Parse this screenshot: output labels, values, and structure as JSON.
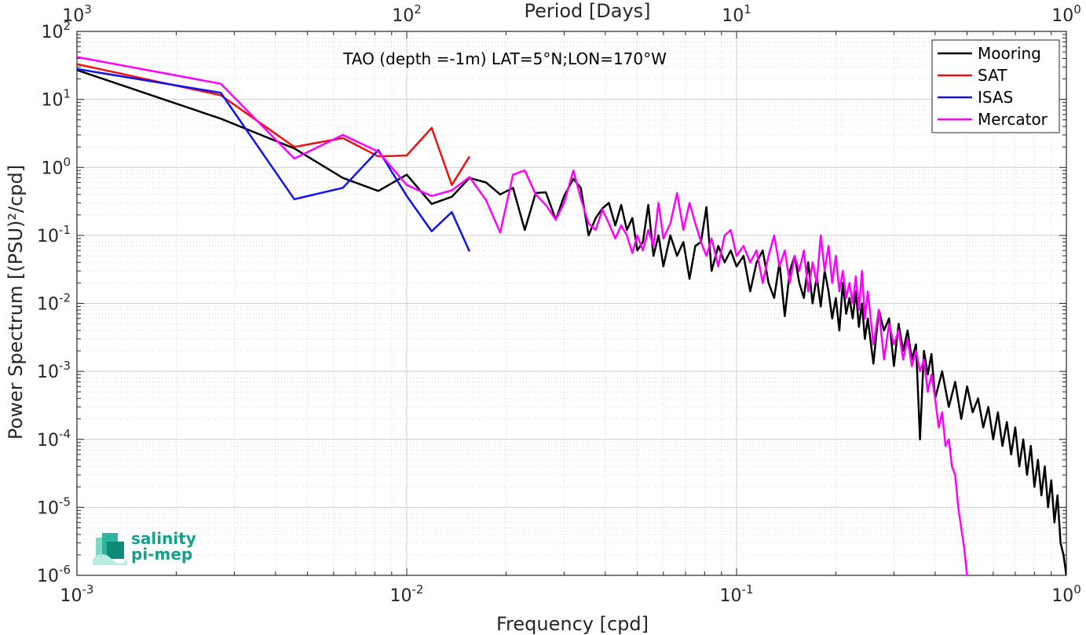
{
  "chart_data": {
    "type": "line",
    "title": "TAO (depth =-1m) LAT=5°N;LON=170°W",
    "xlabel": "Frequency [cpd]",
    "ylabel": "Power Spectrum [(PSU)²/cpd]",
    "top_xlabel": "Period [Days]",
    "x_scale": "log",
    "y_scale": "log",
    "xlim": [
      0.001,
      1
    ],
    "ylim": [
      1e-06,
      100
    ],
    "grid": true,
    "legend_position": "top-right",
    "x_ticks": [
      {
        "base": "10",
        "exp": "-3",
        "value": 0.001
      },
      {
        "base": "10",
        "exp": "-2",
        "value": 0.01
      },
      {
        "base": "10",
        "exp": "-1",
        "value": 0.1
      },
      {
        "base": "10",
        "exp": "0",
        "value": 1
      }
    ],
    "top_ticks": [
      {
        "base": "10",
        "exp": "3",
        "period": 1000
      },
      {
        "base": "10",
        "exp": "2",
        "period": 100
      },
      {
        "base": "10",
        "exp": "1",
        "period": 10
      },
      {
        "base": "10",
        "exp": "0",
        "period": 1
      }
    ],
    "y_ticks": [
      {
        "base": "10",
        "exp": "2",
        "value": 100
      },
      {
        "base": "10",
        "exp": "1",
        "value": 10
      },
      {
        "base": "10",
        "exp": "0",
        "value": 1
      },
      {
        "base": "10",
        "exp": "-1",
        "value": 0.1
      },
      {
        "base": "10",
        "exp": "-2",
        "value": 0.01
      },
      {
        "base": "10",
        "exp": "-3",
        "value": 0.001
      },
      {
        "base": "10",
        "exp": "-4",
        "value": 0.0001
      },
      {
        "base": "10",
        "exp": "-5",
        "value": 1e-05
      },
      {
        "base": "10",
        "exp": "-6",
        "value": 1e-06
      }
    ],
    "series": [
      {
        "name": "Mooring",
        "color": "#000000",
        "points": [
          [
            0.001,
            27
          ],
          [
            0.00273,
            5.2
          ],
          [
            0.00456,
            1.9
          ],
          [
            0.0064,
            0.7
          ],
          [
            0.0082,
            0.45
          ],
          [
            0.01,
            0.78
          ],
          [
            0.0119,
            0.29
          ],
          [
            0.0137,
            0.37
          ],
          [
            0.0155,
            0.7
          ],
          [
            0.0174,
            0.6
          ],
          [
            0.0192,
            0.4
          ],
          [
            0.021,
            0.5
          ],
          [
            0.0228,
            0.12
          ],
          [
            0.0246,
            0.42
          ],
          [
            0.0264,
            0.43
          ],
          [
            0.0283,
            0.17
          ],
          [
            0.03,
            0.38
          ],
          [
            0.032,
            0.68
          ],
          [
            0.0337,
            0.5
          ],
          [
            0.0356,
            0.1
          ],
          [
            0.0374,
            0.18
          ],
          [
            0.0392,
            0.25
          ],
          [
            0.041,
            0.3
          ],
          [
            0.0429,
            0.14
          ],
          [
            0.0447,
            0.28
          ],
          [
            0.0465,
            0.12
          ],
          [
            0.0483,
            0.18
          ],
          [
            0.05,
            0.06
          ],
          [
            0.052,
            0.08
          ],
          [
            0.054,
            0.28
          ],
          [
            0.056,
            0.05
          ],
          [
            0.058,
            0.1
          ],
          [
            0.06,
            0.035
          ],
          [
            0.063,
            0.1
          ],
          [
            0.066,
            0.05
          ],
          [
            0.069,
            0.08
          ],
          [
            0.072,
            0.023
          ],
          [
            0.075,
            0.07
          ],
          [
            0.078,
            0.08
          ],
          [
            0.081,
            0.26
          ],
          [
            0.084,
            0.03
          ],
          [
            0.088,
            0.07
          ],
          [
            0.092,
            0.04
          ],
          [
            0.096,
            0.06
          ],
          [
            0.1,
            0.035
          ],
          [
            0.105,
            0.05
          ],
          [
            0.11,
            0.015
          ],
          [
            0.115,
            0.04
          ],
          [
            0.12,
            0.06
          ],
          [
            0.125,
            0.02
          ],
          [
            0.13,
            0.012
          ],
          [
            0.135,
            0.04
          ],
          [
            0.14,
            0.0065
          ],
          [
            0.145,
            0.03
          ],
          [
            0.15,
            0.05
          ],
          [
            0.155,
            0.02
          ],
          [
            0.16,
            0.012
          ],
          [
            0.165,
            0.04
          ],
          [
            0.17,
            0.01
          ],
          [
            0.175,
            0.025
          ],
          [
            0.18,
            0.009
          ],
          [
            0.185,
            0.03
          ],
          [
            0.19,
            0.015
          ],
          [
            0.195,
            0.006
          ],
          [
            0.2,
            0.012
          ],
          [
            0.205,
            0.004
          ],
          [
            0.21,
            0.02
          ],
          [
            0.215,
            0.007
          ],
          [
            0.22,
            0.012
          ],
          [
            0.225,
            0.006
          ],
          [
            0.23,
            0.015
          ],
          [
            0.235,
            0.0045
          ],
          [
            0.24,
            0.01
          ],
          [
            0.245,
            0.003
          ],
          [
            0.25,
            0.006
          ],
          [
            0.26,
            0.0013
          ],
          [
            0.27,
            0.008
          ],
          [
            0.28,
            0.004
          ],
          [
            0.29,
            0.006
          ],
          [
            0.3,
            0.0012
          ],
          [
            0.31,
            0.005
          ],
          [
            0.32,
            0.002
          ],
          [
            0.33,
            0.004
          ],
          [
            0.34,
            0.0015
          ],
          [
            0.35,
            0.0025
          ],
          [
            0.36,
            0.0001
          ],
          [
            0.37,
            0.002
          ],
          [
            0.38,
            0.0009
          ],
          [
            0.39,
            0.0018
          ],
          [
            0.4,
            0.0004
          ],
          [
            0.42,
            0.001
          ],
          [
            0.44,
            0.0003
          ],
          [
            0.46,
            0.0007
          ],
          [
            0.48,
            0.0002
          ],
          [
            0.5,
            0.0006
          ],
          [
            0.52,
            0.00025
          ],
          [
            0.54,
            0.0004
          ],
          [
            0.56,
            0.00015
          ],
          [
            0.58,
            0.0003
          ],
          [
            0.6,
            0.0001
          ],
          [
            0.62,
            0.00025
          ],
          [
            0.64,
            8e-05
          ],
          [
            0.66,
            0.00018
          ],
          [
            0.68,
            6e-05
          ],
          [
            0.7,
            0.00015
          ],
          [
            0.72,
            4e-05
          ],
          [
            0.74,
            0.0001
          ],
          [
            0.76,
            3e-05
          ],
          [
            0.78,
            8e-05
          ],
          [
            0.8,
            2e-05
          ],
          [
            0.82,
            5e-05
          ],
          [
            0.84,
            1.5e-05
          ],
          [
            0.86,
            4e-05
          ],
          [
            0.88,
            1e-05
          ],
          [
            0.9,
            2.5e-05
          ],
          [
            0.92,
            6e-06
          ],
          [
            0.94,
            1.5e-05
          ],
          [
            0.96,
            3e-06
          ],
          [
            0.98,
            2e-06
          ],
          [
            1.0,
            1e-06
          ]
        ]
      },
      {
        "name": "SAT",
        "color": "#ee1111",
        "points": [
          [
            0.001,
            33
          ],
          [
            0.00273,
            11.5
          ],
          [
            0.00456,
            2.0
          ],
          [
            0.0064,
            2.7
          ],
          [
            0.0082,
            1.45
          ],
          [
            0.01,
            1.5
          ],
          [
            0.0119,
            3.8
          ],
          [
            0.0137,
            0.55
          ],
          [
            0.0155,
            1.45
          ]
        ]
      },
      {
        "name": "ISAS",
        "color": "#1111ee",
        "points": [
          [
            0.001,
            28
          ],
          [
            0.00273,
            12.5
          ],
          [
            0.00456,
            0.34
          ],
          [
            0.0064,
            0.5
          ],
          [
            0.0082,
            1.8
          ],
          [
            0.01,
            0.38
          ],
          [
            0.0119,
            0.115
          ],
          [
            0.0137,
            0.22
          ],
          [
            0.0155,
            0.058
          ]
        ]
      },
      {
        "name": "Mercator",
        "color": "#ff00ff",
        "points": [
          [
            0.001,
            42
          ],
          [
            0.00273,
            17
          ],
          [
            0.00456,
            1.35
          ],
          [
            0.0064,
            3.0
          ],
          [
            0.0082,
            1.7
          ],
          [
            0.01,
            0.55
          ],
          [
            0.0119,
            0.38
          ],
          [
            0.0137,
            0.46
          ],
          [
            0.0155,
            0.72
          ],
          [
            0.0174,
            0.33
          ],
          [
            0.0192,
            0.11
          ],
          [
            0.021,
            0.78
          ],
          [
            0.0228,
            0.9
          ],
          [
            0.0246,
            0.4
          ],
          [
            0.0264,
            0.28
          ],
          [
            0.0283,
            0.17
          ],
          [
            0.03,
            0.3
          ],
          [
            0.032,
            0.9
          ],
          [
            0.0337,
            0.35
          ],
          [
            0.0356,
            0.15
          ],
          [
            0.0374,
            0.12
          ],
          [
            0.0392,
            0.24
          ],
          [
            0.041,
            0.15
          ],
          [
            0.0429,
            0.09
          ],
          [
            0.0447,
            0.14
          ],
          [
            0.0465,
            0.1
          ],
          [
            0.0483,
            0.055
          ],
          [
            0.05,
            0.1
          ],
          [
            0.052,
            0.06
          ],
          [
            0.054,
            0.12
          ],
          [
            0.056,
            0.07
          ],
          [
            0.058,
            0.3
          ],
          [
            0.06,
            0.09
          ],
          [
            0.063,
            0.15
          ],
          [
            0.066,
            0.42
          ],
          [
            0.069,
            0.12
          ],
          [
            0.072,
            0.3
          ],
          [
            0.075,
            0.15
          ],
          [
            0.078,
            0.08
          ],
          [
            0.081,
            0.05
          ],
          [
            0.084,
            0.09
          ],
          [
            0.088,
            0.035
          ],
          [
            0.092,
            0.1
          ],
          [
            0.096,
            0.12
          ],
          [
            0.1,
            0.05
          ],
          [
            0.105,
            0.07
          ],
          [
            0.11,
            0.04
          ],
          [
            0.115,
            0.06
          ],
          [
            0.12,
            0.02
          ],
          [
            0.125,
            0.05
          ],
          [
            0.13,
            0.1
          ],
          [
            0.135,
            0.035
          ],
          [
            0.14,
            0.06
          ],
          [
            0.145,
            0.02
          ],
          [
            0.15,
            0.05
          ],
          [
            0.155,
            0.03
          ],
          [
            0.16,
            0.06
          ],
          [
            0.165,
            0.015
          ],
          [
            0.17,
            0.04
          ],
          [
            0.175,
            0.02
          ],
          [
            0.18,
            0.1
          ],
          [
            0.185,
            0.03
          ],
          [
            0.19,
            0.07
          ],
          [
            0.195,
            0.02
          ],
          [
            0.2,
            0.05
          ],
          [
            0.205,
            0.015
          ],
          [
            0.21,
            0.03
          ],
          [
            0.215,
            0.012
          ],
          [
            0.22,
            0.02
          ],
          [
            0.225,
            0.01
          ],
          [
            0.23,
            0.025
          ],
          [
            0.235,
            0.008
          ],
          [
            0.24,
            0.03
          ],
          [
            0.245,
            0.006
          ],
          [
            0.25,
            0.015
          ],
          [
            0.26,
            0.0025
          ],
          [
            0.27,
            0.008
          ],
          [
            0.28,
            0.0015
          ],
          [
            0.29,
            0.005
          ],
          [
            0.3,
            0.0025
          ],
          [
            0.31,
            0.004
          ],
          [
            0.32,
            0.0015
          ],
          [
            0.33,
            0.003
          ],
          [
            0.34,
            0.0012
          ],
          [
            0.35,
            0.002
          ],
          [
            0.36,
            0.001
          ],
          [
            0.37,
            0.0015
          ],
          [
            0.38,
            0.0005
          ],
          [
            0.39,
            0.0009
          ],
          [
            0.4,
            0.0004
          ],
          [
            0.41,
            0.00015
          ],
          [
            0.42,
            0.00025
          ],
          [
            0.43,
            8e-05
          ],
          [
            0.44,
            0.0001
          ],
          [
            0.45,
            4e-05
          ],
          [
            0.46,
            3e-05
          ],
          [
            0.47,
            1e-05
          ],
          [
            0.48,
            5e-06
          ],
          [
            0.49,
            2.5e-06
          ],
          [
            0.5,
            1e-06
          ]
        ]
      }
    ]
  },
  "logo": {
    "line1": "salinity",
    "line2": "pi-mep"
  }
}
